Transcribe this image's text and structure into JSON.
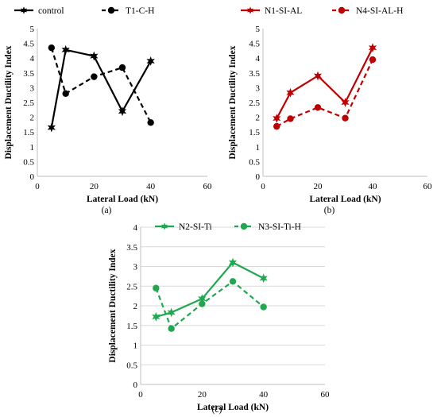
{
  "chart_data": [
    {
      "type": "line",
      "panel_label": "(a)",
      "xlabel": "Lateral Load (kN)",
      "ylabel": "Displacement Ductility Index",
      "xlim": [
        0,
        60
      ],
      "ylim": [
        0,
        5
      ],
      "xticks": [
        0,
        20,
        40,
        60
      ],
      "yticks": [
        0,
        0.5,
        1,
        1.5,
        2,
        2.5,
        3,
        3.5,
        4,
        4.5,
        5
      ],
      "ytick_labels": [
        "0",
        "0.5",
        "1",
        "1.5",
        "2",
        "2.5",
        "3",
        "3.5",
        "4",
        "4.5",
        "5"
      ],
      "grid": false,
      "legend_position": "top",
      "series": [
        {
          "name": "control",
          "color": "#000000",
          "dash": "solid",
          "marker": "star",
          "x": [
            5,
            10,
            20,
            30,
            40
          ],
          "y": [
            1.65,
            4.28,
            4.07,
            2.2,
            3.9
          ]
        },
        {
          "name": "T1-C-H",
          "color": "#000000",
          "dash": "dashed",
          "marker": "circle",
          "x": [
            5,
            10,
            20,
            30,
            40
          ],
          "y": [
            4.35,
            2.8,
            3.37,
            3.68,
            1.82
          ]
        }
      ]
    },
    {
      "type": "line",
      "panel_label": "(b)",
      "xlabel": "Lateral Load (kN)",
      "ylabel": "Displacement Ductility Index",
      "xlim": [
        0,
        60
      ],
      "ylim": [
        0,
        5
      ],
      "xticks": [
        0,
        20,
        40,
        60
      ],
      "yticks": [
        0,
        0.5,
        1,
        1.5,
        2,
        2.5,
        3,
        3.5,
        4,
        4.5,
        5
      ],
      "ytick_labels": [
        "0",
        "0.5",
        "1",
        "1.5",
        "2",
        "2.5",
        "3",
        "3.5",
        "4",
        "4.5",
        "5"
      ],
      "grid": false,
      "legend_position": "top",
      "series": [
        {
          "name": "N1-SI-AL",
          "color": "#c00000",
          "dash": "solid",
          "marker": "star",
          "x": [
            5,
            10,
            20,
            30,
            40
          ],
          "y": [
            1.96,
            2.83,
            3.4,
            2.5,
            4.35
          ]
        },
        {
          "name": "N4-SI-AL-H",
          "color": "#c00000",
          "dash": "dashed",
          "marker": "circle",
          "x": [
            5,
            10,
            20,
            30,
            40
          ],
          "y": [
            1.69,
            1.95,
            2.33,
            1.97,
            3.95
          ]
        }
      ]
    },
    {
      "type": "line",
      "panel_label": "(c)",
      "xlabel": "Lateral Load (kN)",
      "ylabel": "Displacement Ductility Index",
      "xlim": [
        0,
        60
      ],
      "ylim": [
        0,
        4
      ],
      "xticks": [
        0,
        20,
        40,
        60
      ],
      "yticks": [
        0,
        0.5,
        1,
        1.5,
        2,
        2.5,
        3,
        3.5,
        4
      ],
      "ytick_labels": [
        "0",
        "0.5",
        "1",
        "1.5",
        "2",
        "2.5",
        "3",
        "3.5",
        "4"
      ],
      "grid": true,
      "legend_position": "top",
      "series": [
        {
          "name": "N2-SI-Ti",
          "color": "#1fa84f",
          "dash": "solid",
          "marker": "star",
          "x": [
            5,
            10,
            20,
            30,
            40
          ],
          "y": [
            1.72,
            1.83,
            2.18,
            3.1,
            2.7
          ]
        },
        {
          "name": "N3-SI-Ti-H",
          "color": "#1fa84f",
          "dash": "dashed",
          "marker": "circle",
          "x": [
            5,
            10,
            20,
            30,
            40
          ],
          "y": [
            2.45,
            1.42,
            2.05,
            2.62,
            1.97
          ]
        }
      ]
    }
  ]
}
